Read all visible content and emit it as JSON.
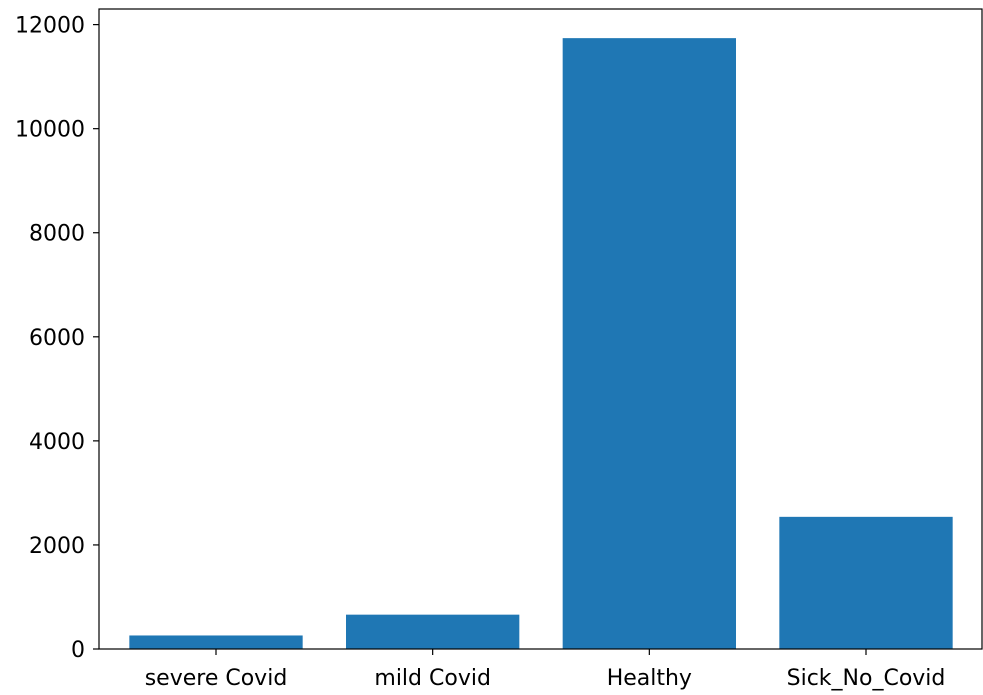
{
  "chart_data": {
    "type": "bar",
    "categories": [
      "severe Covid",
      "mild Covid",
      "Healthy",
      "Sick_No_Covid"
    ],
    "values": [
      260,
      660,
      11740,
      2540
    ],
    "title": "",
    "xlabel": "",
    "ylabel": "",
    "ylim": [
      0,
      12300
    ],
    "yticks": [
      0,
      2000,
      4000,
      6000,
      8000,
      10000,
      12000
    ],
    "grid": false,
    "bar_color": "#1f77b4"
  }
}
